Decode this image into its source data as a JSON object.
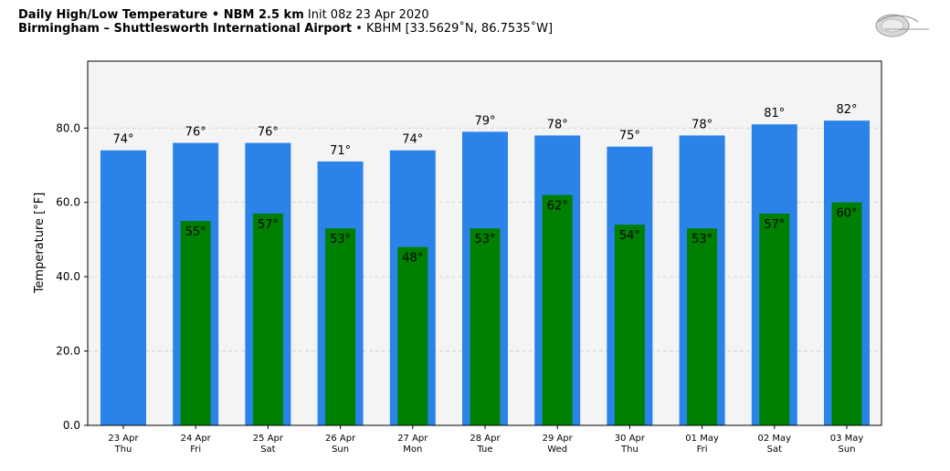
{
  "header": {
    "line1_bold": "Daily High/Low Temperature • NBM 2.5 km",
    "line1_rest": "Init 08z 23 Apr 2020",
    "line2_bold": "Birmingham – Shuttlesworth International Airport",
    "line2_rest": "• KBHM [33.5629˚N, 86.7535˚W]"
  },
  "colors": {
    "high": "#2b83ea",
    "low": "#008000",
    "plot_bg": "#f4f4f4",
    "grid": "#cccccc"
  },
  "chart_data": {
    "type": "bar",
    "ylabel": "Temperature [°F]",
    "ylim": [
      0,
      98
    ],
    "yticks": [
      "0.0",
      "20.0",
      "40.0",
      "60.0",
      "80.0"
    ],
    "ytick_values": [
      0,
      20,
      40,
      60,
      80
    ],
    "grid": true,
    "categories": [
      {
        "date": "23 Apr",
        "day": "Thu"
      },
      {
        "date": "24 Apr",
        "day": "Fri"
      },
      {
        "date": "25 Apr",
        "day": "Sat"
      },
      {
        "date": "26 Apr",
        "day": "Sun"
      },
      {
        "date": "27 Apr",
        "day": "Mon"
      },
      {
        "date": "28 Apr",
        "day": "Tue"
      },
      {
        "date": "29 Apr",
        "day": "Wed"
      },
      {
        "date": "30 Apr",
        "day": "Thu"
      },
      {
        "date": "01 May",
        "day": "Fri"
      },
      {
        "date": "02 May",
        "day": "Sat"
      },
      {
        "date": "03 May",
        "day": "Sun"
      }
    ],
    "series": [
      {
        "values": [
          74,
          76,
          76,
          71,
          74,
          79,
          78,
          75,
          78,
          81,
          82
        ],
        "labels": [
          "74°",
          "76°",
          "76°",
          "71°",
          "74°",
          "79°",
          "78°",
          "75°",
          "78°",
          "81°",
          "82°"
        ]
      },
      {
        "values": [
          null,
          55,
          57,
          53,
          48,
          53,
          62,
          54,
          53,
          57,
          60
        ],
        "labels": [
          null,
          "55°",
          "57°",
          "53°",
          "48°",
          "53°",
          "62°",
          "54°",
          "53°",
          "57°",
          "60°"
        ]
      }
    ]
  }
}
